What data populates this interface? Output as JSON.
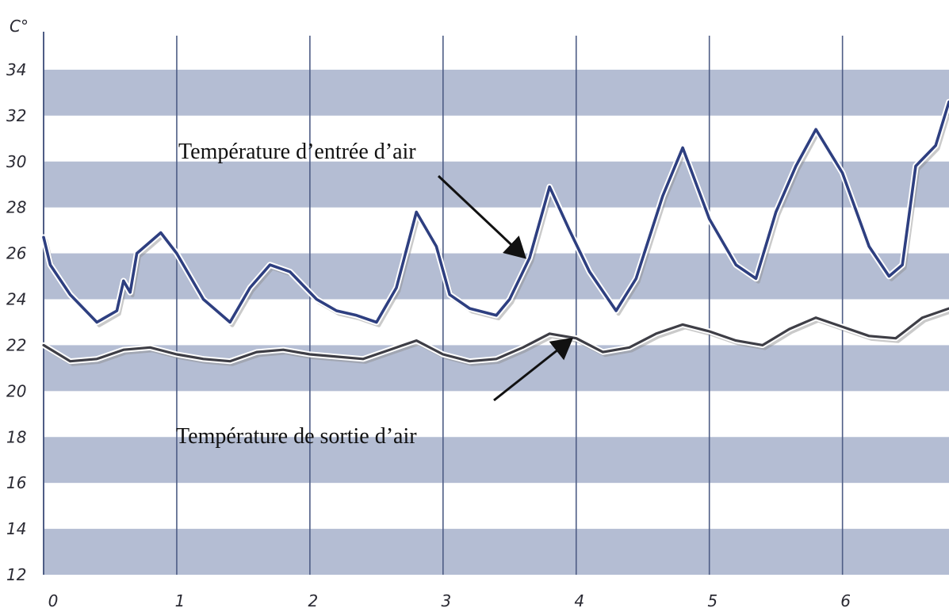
{
  "chart_data": {
    "type": "line",
    "ylabel": "C°",
    "xlim": [
      0,
      6.8
    ],
    "ylim": [
      12,
      36
    ],
    "x_ticks": [
      "0",
      "1",
      "2",
      "3",
      "4",
      "5",
      "6"
    ],
    "y_ticks": [
      "12",
      "14",
      "16",
      "18",
      "20",
      "22",
      "24",
      "26",
      "28",
      "30",
      "32",
      "34"
    ],
    "bands": [
      [
        12,
        14
      ],
      [
        16,
        18
      ],
      [
        20,
        22
      ],
      [
        24,
        26
      ],
      [
        28,
        30
      ],
      [
        32,
        34
      ]
    ],
    "grid": "vertical",
    "colors": {
      "band": "#b4bdd3",
      "grid": "#4e5d85",
      "series_in": "#2e3f80",
      "series_out": "#3e3e46"
    },
    "series": [
      {
        "name": "Température d’entrée d’air",
        "x": [
          0,
          0.05,
          0.2,
          0.4,
          0.55,
          0.6,
          0.65,
          0.7,
          0.8,
          0.88,
          1.0,
          1.2,
          1.4,
          1.55,
          1.7,
          1.85,
          2.05,
          2.2,
          2.35,
          2.5,
          2.65,
          2.8,
          2.95,
          3.05,
          3.2,
          3.4,
          3.5,
          3.65,
          3.8,
          3.95,
          4.1,
          4.3,
          4.45,
          4.65,
          4.8,
          5.0,
          5.2,
          5.35,
          5.5,
          5.65,
          5.8,
          6.0,
          6.2,
          6.35,
          6.45,
          6.55,
          6.7,
          6.8
        ],
        "y": [
          26.7,
          25.5,
          24.2,
          23.0,
          23.5,
          24.8,
          24.3,
          26.0,
          26.5,
          26.9,
          26.0,
          24.0,
          23.0,
          24.5,
          25.5,
          25.2,
          24.0,
          23.5,
          23.3,
          23.0,
          24.5,
          27.8,
          26.3,
          24.2,
          23.6,
          23.3,
          24.0,
          25.8,
          28.9,
          27.0,
          25.2,
          23.5,
          24.9,
          28.5,
          30.6,
          27.5,
          25.5,
          24.9,
          27.8,
          29.8,
          31.4,
          29.5,
          26.3,
          25.0,
          25.5,
          29.8,
          30.7,
          32.6
        ]
      },
      {
        "name": "Température de sortie d’air",
        "x": [
          0,
          0.2,
          0.4,
          0.6,
          0.8,
          1.0,
          1.2,
          1.4,
          1.6,
          1.8,
          2.0,
          2.2,
          2.4,
          2.6,
          2.8,
          3.0,
          3.2,
          3.4,
          3.6,
          3.8,
          4.0,
          4.2,
          4.4,
          4.6,
          4.8,
          5.0,
          5.2,
          5.4,
          5.6,
          5.8,
          6.0,
          6.2,
          6.4,
          6.6,
          6.8
        ],
        "y": [
          22.0,
          21.3,
          21.4,
          21.8,
          21.9,
          21.6,
          21.4,
          21.3,
          21.7,
          21.8,
          21.6,
          21.5,
          21.4,
          21.8,
          22.2,
          21.6,
          21.3,
          21.4,
          21.9,
          22.5,
          22.3,
          21.7,
          21.9,
          22.5,
          22.9,
          22.6,
          22.2,
          22.0,
          22.7,
          23.2,
          22.8,
          22.4,
          22.3,
          23.2,
          23.6
        ]
      }
    ],
    "annotations": [
      {
        "text": "Température d’entrée d’air",
        "arrow_to": [
          3.6,
          25.9
        ]
      },
      {
        "text": "Température de sortie d’air",
        "arrow_to": [
          3.95,
          22.2
        ]
      }
    ]
  }
}
